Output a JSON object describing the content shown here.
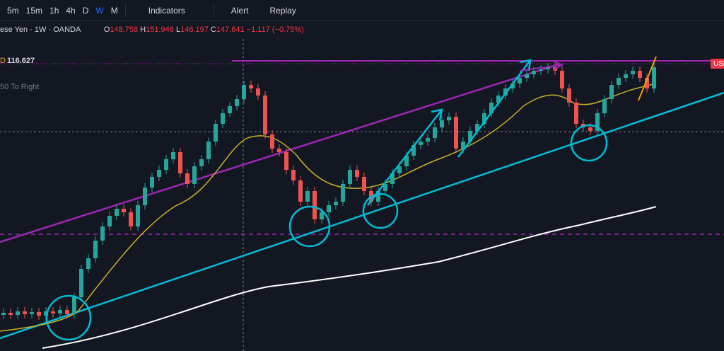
{
  "toolbar": {
    "intervals": [
      "5m",
      "15m",
      "1h",
      "4h",
      "D",
      "W",
      "M"
    ],
    "indicators": "Indicators",
    "alert": "Alert",
    "replay": "Replay"
  },
  "legend": {
    "symbol": "ese Yen · 1W · OANDA",
    "open_label": "O",
    "open": "148.758",
    "high_label": "H",
    "high": "151.946",
    "low_label": "L",
    "low": "146.197",
    "close_label": "C",
    "close": "147.641",
    "change": "−1.117 (−0.75%)"
  },
  "indicator": {
    "prefix": "D",
    "value": "116.627",
    "label": "50 To Right"
  },
  "price_tag": "USD"
}
